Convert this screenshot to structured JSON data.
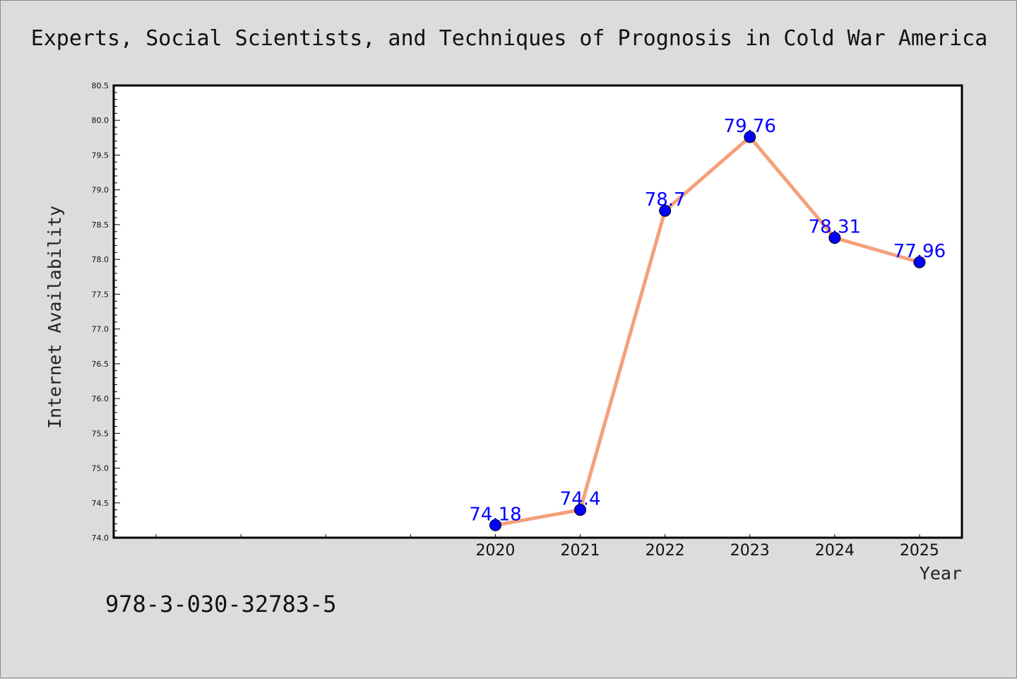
{
  "chart_data": {
    "type": "line",
    "title": "Experts, Social Scientists, and Techniques of Prognosis in Cold War America",
    "xlabel": "Year",
    "ylabel": "Internet Availability",
    "x": [
      2020,
      2021,
      2022,
      2023,
      2024,
      2025
    ],
    "x_tick_labels": [
      "2020",
      "2021",
      "2022",
      "2023",
      "2024",
      "2025"
    ],
    "y": [
      74.18,
      74.4,
      78.7,
      79.76,
      78.31,
      77.96
    ],
    "data_labels": [
      "74.18",
      "74.4",
      "78.7",
      "79.76",
      "78.31",
      "77.96"
    ],
    "xlim": [
      2015.5,
      2025.5
    ],
    "ylim": [
      74.0,
      80.5
    ],
    "y_ticks": [
      "74.0",
      "74.5",
      "75.0",
      "75.5",
      "76.0",
      "76.5",
      "77.0",
      "77.5",
      "78.0",
      "78.5",
      "79.0",
      "79.5",
      "80.0",
      "80.5"
    ],
    "grid": false,
    "legend": "none",
    "line_color": "#f4a07c",
    "marker_color": "#0000ff",
    "label_color": "#0000ff"
  },
  "footer": {
    "isbn": "978-3-030-32783-5"
  }
}
